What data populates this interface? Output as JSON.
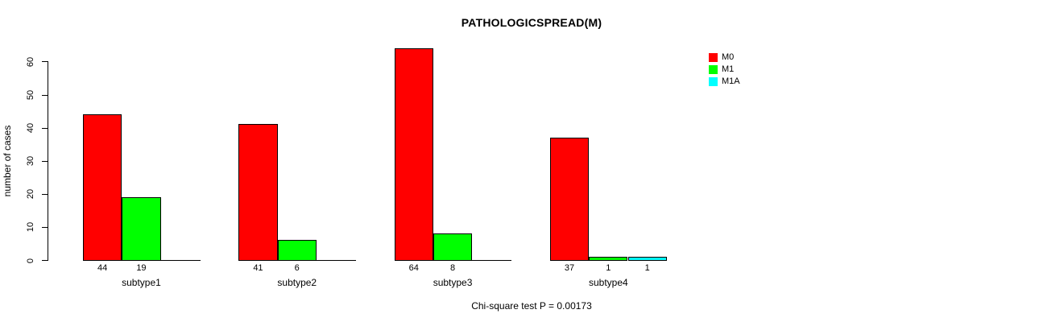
{
  "chart_data": {
    "type": "bar",
    "title": "PATHOLOGICSPREAD(M)",
    "ylabel": "number of cases",
    "xlabel": "",
    "categories": [
      "subtype1",
      "subtype2",
      "subtype3",
      "subtype4"
    ],
    "series": [
      {
        "name": "M0",
        "color": "#ff0000",
        "values": [
          44,
          41,
          64,
          37
        ]
      },
      {
        "name": "M1",
        "color": "#00ff00",
        "values": [
          19,
          6,
          8,
          1
        ]
      },
      {
        "name": "M1A",
        "color": "#00ffff",
        "values": [
          0,
          0,
          0,
          1
        ]
      }
    ],
    "ylim": [
      0,
      60
    ],
    "yticks": [
      0,
      10,
      20,
      30,
      40,
      50,
      60
    ],
    "grid": false,
    "legend_position": "top-right",
    "bar_border_color": "#000000",
    "value_labels": "shown under each bar, only for values > 0",
    "annotation": "Chi-square test P = 0.00173"
  }
}
